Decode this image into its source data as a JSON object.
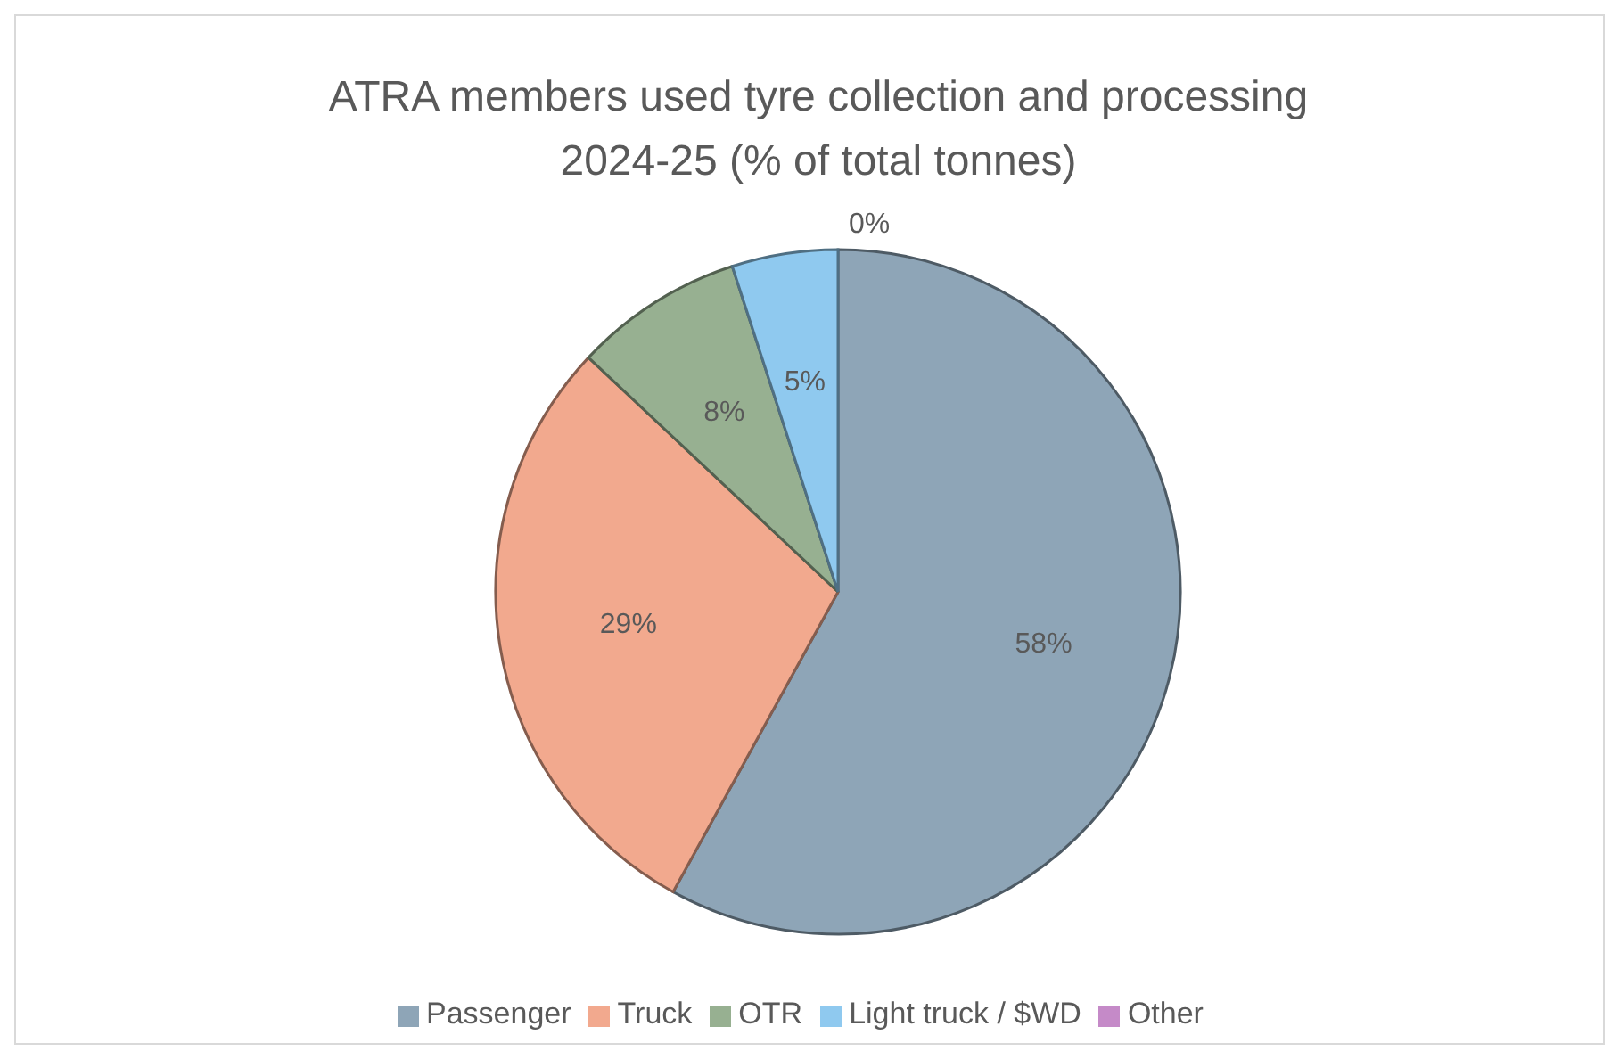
{
  "chart_data": {
    "type": "pie",
    "title": "ATRA members used tyre collection and processing 2024-25 (% of total tonnes)",
    "categories": [
      "Passenger",
      "Truck",
      "OTR",
      "Light truck / $WD",
      "Other"
    ],
    "values": [
      58,
      29,
      8,
      5,
      0
    ],
    "colors": [
      "#8ea5b7",
      "#f2a98e",
      "#97b091",
      "#8fc9ef",
      "#c58ac8"
    ],
    "value_labels": [
      "58%",
      "29%",
      "8%",
      "5%",
      "0%"
    ],
    "legend": "bottom"
  }
}
